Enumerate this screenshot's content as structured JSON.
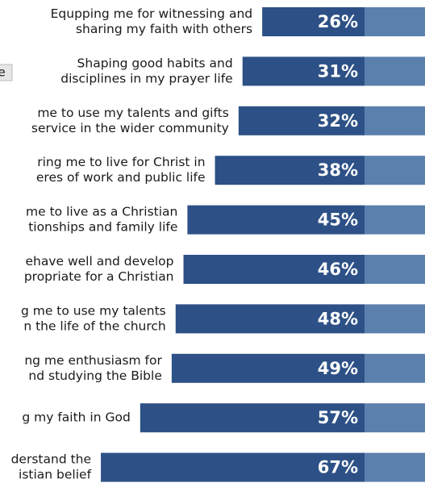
{
  "chart_data": {
    "type": "bar",
    "orientation": "horizontal",
    "note_box": "e",
    "categories": [
      [
        "Equpping me for witnessing and",
        "sharing my faith with others"
      ],
      [
        "Shaping good habits and",
        "disciplines in my prayer life"
      ],
      [
        "me to use my talents and gifts",
        "service in the wider community"
      ],
      [
        "ring me to live for Christ in",
        "eres of work and public life"
      ],
      [
        "me to live as a Christian",
        "tionships and family life"
      ],
      [
        "ehave well and develop",
        "propriate for a Christian"
      ],
      [
        "g me to use my talents",
        "n the life of the church"
      ],
      [
        "ng me enthusiasm for",
        "nd studying the Bible"
      ],
      [
        "g my faith in God"
      ],
      [
        "derstand the",
        "istian belief"
      ]
    ],
    "values": [
      26,
      31,
      32,
      38,
      45,
      46,
      48,
      49,
      57,
      67
    ],
    "value_labels": [
      "26%",
      "31%",
      "32%",
      "38%",
      "45%",
      "46%",
      "48%",
      "49%",
      "57%",
      "67%"
    ],
    "color": "#2d5186",
    "rest_color": "#5b80ad"
  }
}
